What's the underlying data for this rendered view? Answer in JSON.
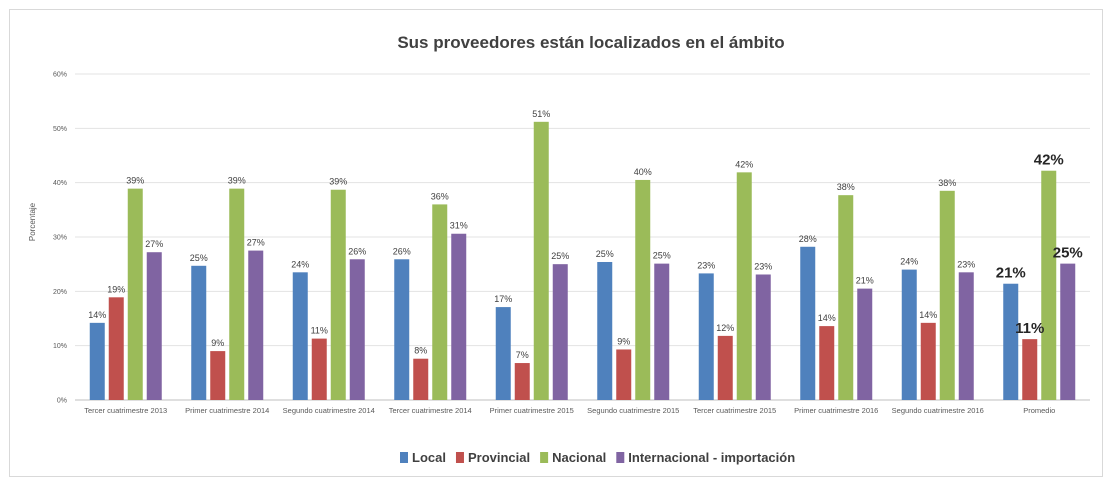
{
  "chart_data": {
    "type": "bar",
    "title": "Sus proveedores están localizados en el ámbito",
    "ylabel": "Porcentaje",
    "xlabel": "",
    "ylim": [
      0,
      60
    ],
    "yticks": [
      "0%",
      "10%",
      "20%",
      "30%",
      "40%",
      "50%",
      "60%"
    ],
    "grid": true,
    "legend_position": "bottom",
    "categories": [
      "Tercer cuatrimestre 2013",
      "Primer cuatrimestre 2014",
      "Segundo cuatrimestre 2014",
      "Tercer cuatrimestre 2014",
      "Primer cuatrimestre 2015",
      "Segundo cuatrimestre 2015",
      "Tercer cuatrimestre 2015",
      "Primer cuatrimestre 2016",
      "Segundo cuatrimestre 2016",
      "Promedio"
    ],
    "series": [
      {
        "name": "Local",
        "color": "#4f81bd",
        "values": [
          14.2,
          24.7,
          23.5,
          25.9,
          17.1,
          25.4,
          23.3,
          28.2,
          24.0,
          21.4
        ],
        "labels": [
          "14%",
          "25%",
          "24%",
          "26%",
          "17%",
          "25%",
          "23%",
          "28%",
          "24%",
          "21%"
        ]
      },
      {
        "name": "Provincial",
        "color": "#c0504d",
        "values": [
          18.9,
          9.0,
          11.3,
          7.6,
          6.8,
          9.3,
          11.8,
          13.6,
          14.2,
          11.2
        ],
        "labels": [
          "19%",
          "9%",
          "11%",
          "8%",
          "7%",
          "9%",
          "12%",
          "14%",
          "14%",
          "11%"
        ]
      },
      {
        "name": "Nacional",
        "color": "#9bbb59",
        "values": [
          38.9,
          38.9,
          38.7,
          36.0,
          51.2,
          40.5,
          41.9,
          37.7,
          38.5,
          42.2
        ],
        "labels": [
          "39%",
          "39%",
          "39%",
          "36%",
          "51%",
          "40%",
          "42%",
          "38%",
          "38%",
          "42%"
        ]
      },
      {
        "name": "Internacional - importación",
        "color": "#8064a2",
        "values": [
          27.2,
          27.5,
          25.9,
          30.6,
          25.0,
          25.1,
          23.1,
          20.5,
          23.5,
          25.1
        ],
        "labels": [
          "27%",
          "27%",
          "26%",
          "31%",
          "25%",
          "25%",
          "23%",
          "21%",
          "23%",
          "25%"
        ]
      }
    ]
  }
}
